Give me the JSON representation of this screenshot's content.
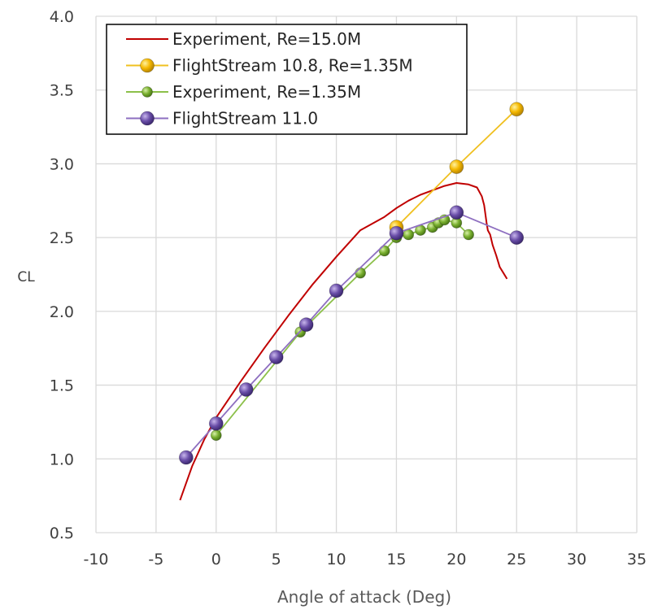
{
  "chart_data": {
    "type": "scatter",
    "title": "",
    "xlabel": "Angle of attack (Deg)",
    "ylabel": "CL",
    "xlim": [
      -10,
      35
    ],
    "ylim": [
      0.5,
      4.0
    ],
    "x_ticks": [
      -10,
      -5,
      0,
      5,
      10,
      15,
      20,
      25,
      30,
      35
    ],
    "y_ticks": [
      0.5,
      1.0,
      1.5,
      2.0,
      2.5,
      3.0,
      3.5,
      4.0
    ],
    "x_tick_labels": [
      "-10",
      "-5",
      "0",
      "5",
      "10",
      "15",
      "20",
      "25",
      "30",
      "35"
    ],
    "y_tick_labels": [
      "0.5",
      "1.0",
      "1.5",
      "2.0",
      "2.5",
      "3.0",
      "3.5",
      "4.0"
    ],
    "grid": true,
    "legend_position": "top-left",
    "series": [
      {
        "name": "Experiment, Re=15.0M",
        "style": "line",
        "color": "#c00000",
        "x": [
          -3.0,
          -2.0,
          -1.0,
          0.0,
          2.0,
          4.0,
          6.0,
          8.0,
          10.0,
          12.0,
          14.0,
          15.0,
          16.0,
          17.0,
          18.0,
          19.0,
          20.0,
          21.0,
          21.7,
          22.1,
          22.3,
          22.5,
          22.6,
          22.8,
          23.0,
          23.3,
          23.6,
          23.9,
          24.2
        ],
        "y": [
          0.72,
          0.95,
          1.13,
          1.28,
          1.52,
          1.75,
          1.97,
          2.18,
          2.37,
          2.55,
          2.64,
          2.7,
          2.75,
          2.79,
          2.82,
          2.85,
          2.87,
          2.86,
          2.84,
          2.78,
          2.72,
          2.6,
          2.55,
          2.52,
          2.45,
          2.38,
          2.3,
          2.26,
          2.22
        ]
      },
      {
        "name": "FlightStream 10.8, Re=1.35M",
        "style": "line-marker",
        "color": "#f0c020",
        "marker_color": "#f5b800",
        "x": [
          15,
          20,
          25
        ],
        "y": [
          2.57,
          2.98,
          3.37
        ]
      },
      {
        "name": "Experiment, Re=1.35M",
        "style": "line-marker-small",
        "color": "#8cc04a",
        "marker_color": "#7ab030",
        "x": [
          0,
          7,
          12,
          14,
          15,
          16,
          17,
          18,
          18.5,
          19,
          20,
          21
        ],
        "y": [
          1.16,
          1.86,
          2.26,
          2.41,
          2.5,
          2.52,
          2.55,
          2.57,
          2.6,
          2.62,
          2.6,
          2.52
        ]
      },
      {
        "name": "FlightStream 11.0",
        "style": "line-marker",
        "color": "#8e6fc0",
        "marker_color": "#6a4ea8",
        "x": [
          -2.5,
          0,
          2.5,
          5,
          7.5,
          10,
          15,
          20,
          25
        ],
        "y": [
          1.01,
          1.24,
          1.47,
          1.69,
          1.91,
          2.14,
          2.53,
          2.67,
          2.5
        ]
      }
    ]
  }
}
